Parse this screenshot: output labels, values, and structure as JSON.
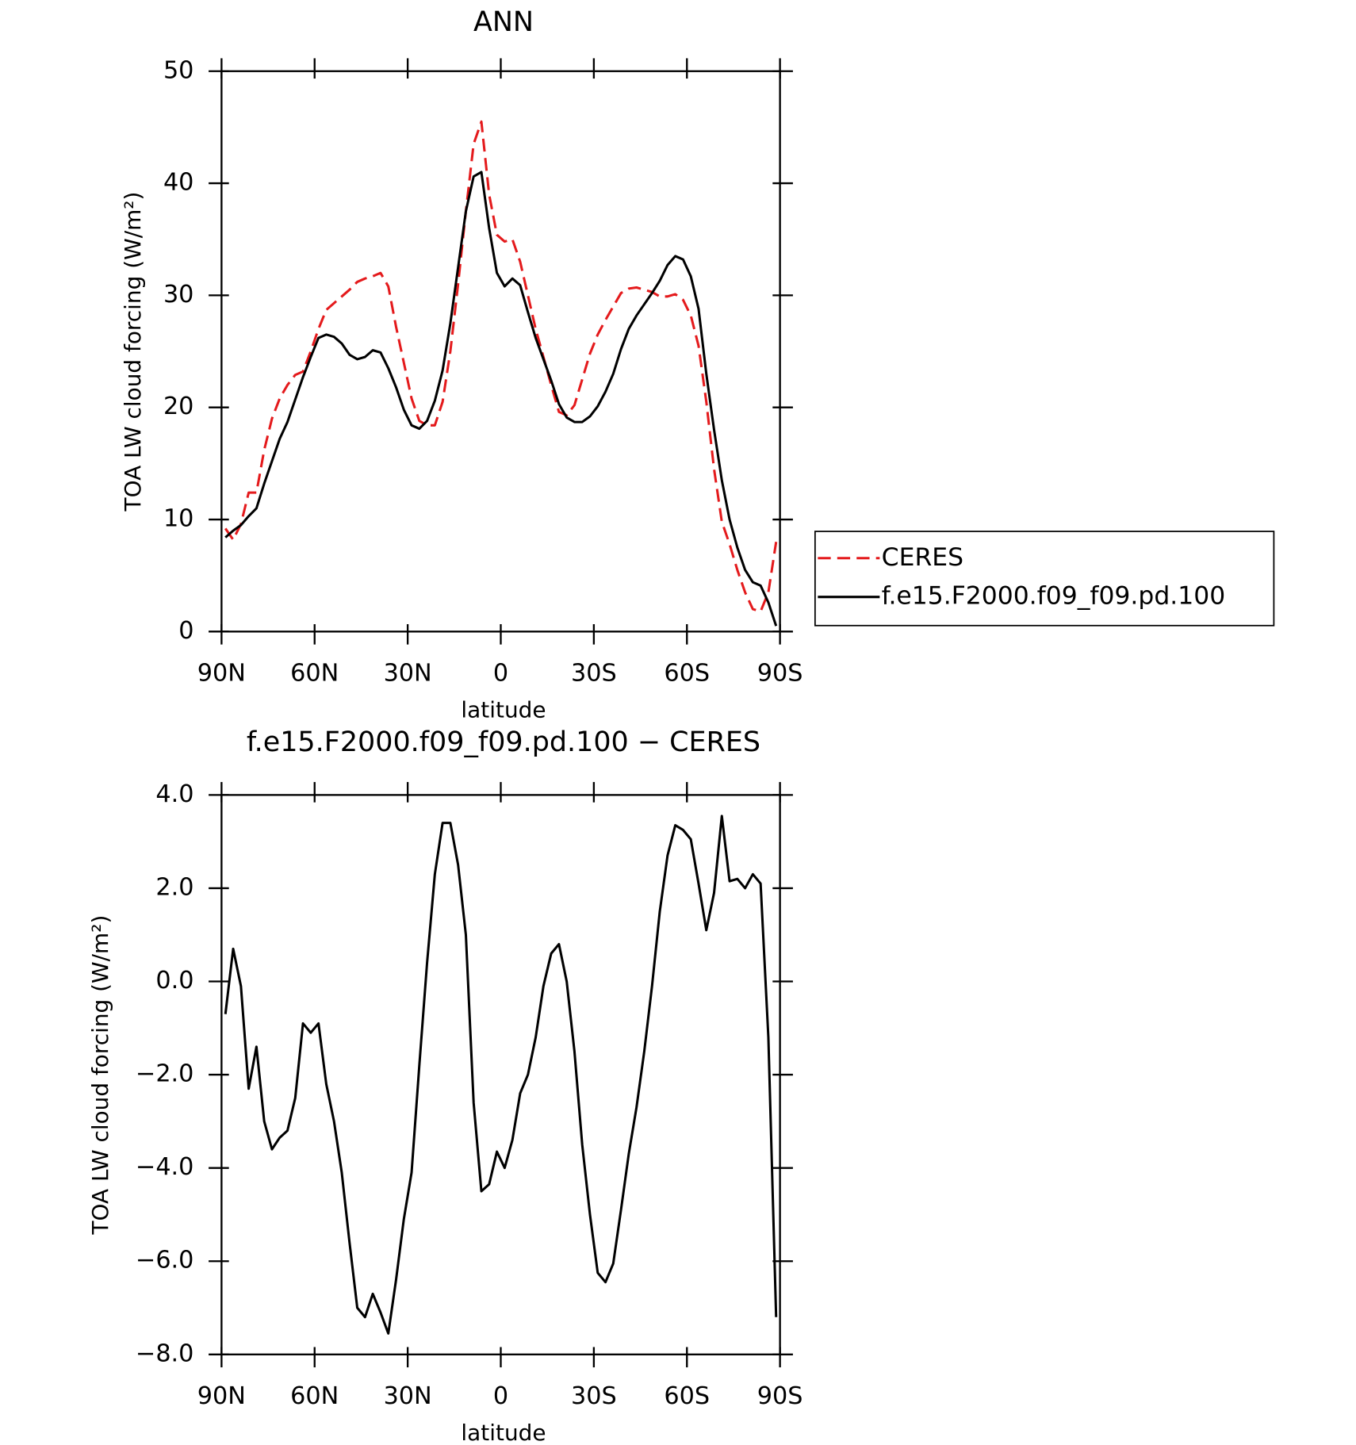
{
  "chart_data": [
    {
      "type": "line",
      "title": "ANN",
      "xlabel": "latitude",
      "ylabel": "TOA LW cloud forcing (W/m²)",
      "x": [
        88.75,
        86.25,
        83.75,
        81.25,
        78.75,
        76.25,
        73.75,
        71.25,
        68.75,
        66.25,
        63.75,
        61.25,
        58.75,
        56.25,
        53.75,
        51.25,
        48.75,
        46.25,
        43.75,
        41.25,
        38.75,
        36.25,
        33.75,
        31.25,
        28.75,
        26.25,
        23.75,
        21.25,
        18.75,
        16.25,
        13.75,
        11.25,
        8.75,
        6.25,
        3.75,
        1.25,
        -1.25,
        -3.75,
        -6.25,
        -8.75,
        -11.25,
        -13.75,
        -16.25,
        -18.75,
        -21.25,
        -23.75,
        -26.25,
        -28.75,
        -31.25,
        -33.75,
        -36.25,
        -38.75,
        -41.25,
        -43.75,
        -46.25,
        -48.75,
        -51.25,
        -53.75,
        -56.25,
        -58.75,
        -61.25,
        -63.75,
        -66.25,
        -68.75,
        -71.25,
        -73.75,
        -76.25,
        -78.75,
        -81.25,
        -83.75,
        -86.25,
        -88.75
      ],
      "series": [
        {
          "name": "CERES",
          "color": "#e41a1c",
          "linestyle": "dashed",
          "values": [
            9.2,
            8.2,
            9.6,
            12.4,
            12.4,
            16.2,
            19.0,
            20.8,
            22.0,
            22.9,
            23.2,
            25.0,
            27.0,
            28.7,
            29.3,
            29.9,
            30.5,
            31.2,
            31.5,
            31.7,
            32.0,
            30.8,
            27.2,
            24.0,
            20.8,
            18.8,
            18.4,
            18.4,
            20.5,
            25.0,
            31.0,
            37.5,
            43.5,
            45.5,
            39.0,
            35.4,
            34.8,
            35.0,
            33.0,
            30.0,
            27.0,
            24.5,
            22.0,
            19.6,
            19.3,
            20.2,
            22.5,
            24.8,
            26.5,
            27.8,
            29.0,
            30.2,
            30.6,
            30.7,
            30.5,
            30.3,
            29.9,
            29.9,
            30.1,
            29.6,
            28.2,
            25.5,
            20.5,
            14.5,
            9.8,
            7.8,
            5.5,
            3.5,
            2.0,
            1.8,
            3.5,
            8.0
          ]
        },
        {
          "name": "f.e15.F2000.f09_f09.pd.100",
          "color": "#000000",
          "linestyle": "solid",
          "values": [
            8.4,
            9.0,
            9.5,
            10.3,
            11.0,
            13.2,
            15.2,
            17.2,
            18.7,
            20.7,
            22.7,
            24.5,
            26.2,
            26.5,
            26.3,
            25.7,
            24.7,
            24.3,
            24.5,
            25.1,
            24.9,
            23.5,
            21.8,
            19.8,
            18.4,
            18.1,
            18.8,
            20.6,
            23.3,
            27.5,
            32.5,
            37.5,
            40.6,
            41.0,
            36.0,
            32.0,
            30.8,
            31.5,
            30.9,
            28.5,
            26.2,
            24.3,
            22.4,
            20.3,
            19.1,
            18.7,
            18.7,
            19.2,
            20.1,
            21.4,
            23.0,
            25.2,
            27.0,
            28.2,
            29.2,
            30.2,
            31.3,
            32.7,
            33.5,
            33.2,
            31.7,
            28.8,
            23.0,
            18.0,
            13.5,
            10.0,
            7.5,
            5.5,
            4.4,
            4.1,
            2.6,
            0.5
          ]
        }
      ],
      "xlim": [
        90,
        -90
      ],
      "xticks": [
        {
          "value": 90,
          "label": "90N"
        },
        {
          "value": 60,
          "label": "60N"
        },
        {
          "value": 30,
          "label": "30N"
        },
        0,
        {
          "value": -30,
          "label": "30S"
        },
        {
          "value": -60,
          "label": "60S"
        },
        {
          "value": -90,
          "label": "90S"
        }
      ],
      "ylim": [
        0,
        50
      ],
      "yticks": [
        0,
        10,
        20,
        30,
        40,
        50
      ],
      "legend": "right"
    },
    {
      "type": "line",
      "title": "f.e15.F2000.f09_f09.pd.100 − CERES",
      "xlabel": "latitude",
      "ylabel": "TOA LW cloud forcing (W/m²)",
      "x": [
        88.75,
        86.25,
        83.75,
        81.25,
        78.75,
        76.25,
        73.75,
        71.25,
        68.75,
        66.25,
        63.75,
        61.25,
        58.75,
        56.25,
        53.75,
        51.25,
        48.75,
        46.25,
        43.75,
        41.25,
        38.75,
        36.25,
        33.75,
        31.25,
        28.75,
        26.25,
        23.75,
        21.25,
        18.75,
        16.25,
        13.75,
        11.25,
        8.75,
        6.25,
        3.75,
        1.25,
        -1.25,
        -3.75,
        -6.25,
        -8.75,
        -11.25,
        -13.75,
        -16.25,
        -18.75,
        -21.25,
        -23.75,
        -26.25,
        -28.75,
        -31.25,
        -33.75,
        -36.25,
        -38.75,
        -41.25,
        -43.75,
        -46.25,
        -48.75,
        -51.25,
        -53.75,
        -56.25,
        -58.75,
        -61.25,
        -63.75,
        -66.25,
        -68.75,
        -71.25,
        -73.75,
        -76.25,
        -78.75,
        -81.25,
        -83.75,
        -86.25,
        -88.75
      ],
      "values": [
        -0.7,
        0.7,
        -0.1,
        -2.3,
        -1.4,
        -3.0,
        -3.6,
        -3.35,
        -3.2,
        -2.5,
        -0.9,
        -1.1,
        -0.9,
        -2.2,
        -3.0,
        -4.1,
        -5.6,
        -7.0,
        -7.2,
        -6.7,
        -7.1,
        -7.55,
        -6.4,
        -5.1,
        -4.1,
        -1.8,
        0.4,
        2.3,
        3.4,
        3.4,
        2.5,
        1.0,
        -2.6,
        -4.5,
        -4.35,
        -3.65,
        -4.0,
        -3.4,
        -2.4,
        -2.0,
        -1.2,
        -0.1,
        0.6,
        0.8,
        0.0,
        -1.5,
        -3.5,
        -5.0,
        -6.25,
        -6.45,
        -6.05,
        -4.9,
        -3.7,
        -2.7,
        -1.5,
        -0.1,
        1.5,
        2.7,
        3.35,
        3.25,
        3.05,
        2.1,
        1.1,
        1.9,
        3.55,
        2.15,
        2.2,
        2.0,
        2.3,
        2.1,
        -1.2,
        -7.2
      ],
      "color": "#000000",
      "linestyle": "solid",
      "xlim": [
        90,
        -90
      ],
      "xticks": [
        {
          "value": 90,
          "label": "90N"
        },
        {
          "value": 60,
          "label": "60N"
        },
        {
          "value": 30,
          "label": "30N"
        },
        0,
        {
          "value": -30,
          "label": "30S"
        },
        {
          "value": -60,
          "label": "60S"
        },
        {
          "value": -90,
          "label": "90S"
        }
      ],
      "ylim": [
        -8,
        4
      ],
      "yticks": [
        {
          "value": -8,
          "label": "−8.0"
        },
        {
          "value": -6,
          "label": "−6.0"
        },
        {
          "value": -4,
          "label": "−4.0"
        },
        {
          "value": -2,
          "label": "−2.0"
        },
        {
          "value": 0,
          "label": "0.0"
        },
        {
          "value": 2,
          "label": "2.0"
        },
        {
          "value": 4,
          "label": "4.0"
        }
      ]
    }
  ]
}
